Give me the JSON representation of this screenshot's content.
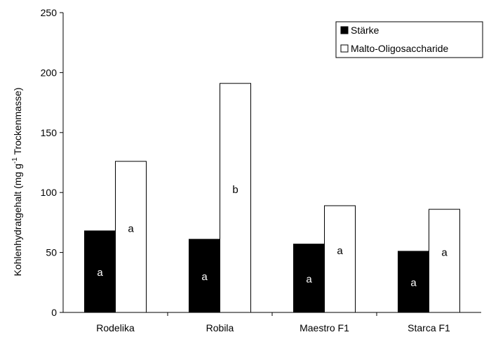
{
  "chart_data": {
    "type": "bar",
    "categories": [
      "Rodelika",
      "Robila",
      "Maestro F1",
      "Starca F1"
    ],
    "series": [
      {
        "name": "Stärke",
        "values": [
          68,
          61,
          57,
          51
        ],
        "color": "#000000",
        "labels": [
          "a",
          "a",
          "a",
          "a"
        ]
      },
      {
        "name": "Malto-Oligosaccharide",
        "values": [
          126,
          191,
          89,
          86
        ],
        "color": "#ffffff",
        "labels": [
          "a",
          "b",
          "a",
          "a"
        ]
      }
    ],
    "ylabel_main": "Kohlenhydratgehalt (mg g",
    "ylabel_sup": "-1",
    "ylabel_tail": " Trockenmasse)",
    "ylim": [
      0,
      250
    ],
    "yticks": [
      0,
      50,
      100,
      150,
      200,
      250
    ],
    "grid": false,
    "legend_position": "top-right"
  }
}
